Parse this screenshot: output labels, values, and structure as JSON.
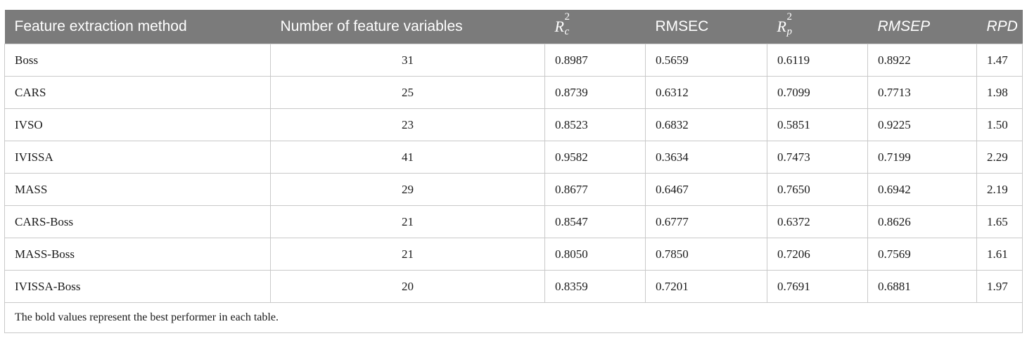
{
  "table": {
    "headers": {
      "method": "Feature extraction method",
      "num_vars": "Number of feature variables",
      "rc2_base": "R",
      "rc2_sup": "2",
      "rc2_sub": "c",
      "rmsec": "RMSEC",
      "rp2_base": "R",
      "rp2_sup": "2",
      "rp2_sub": "p",
      "rmsep": "RMSEP",
      "rpd": "RPD"
    },
    "rows": [
      {
        "method": "Boss",
        "num_vars": "31",
        "rc2": "0.8987",
        "rmsec": "0.5659",
        "rp2": "0.6119",
        "rmsep": "0.8922",
        "rpd": "1.47"
      },
      {
        "method": "CARS",
        "num_vars": "25",
        "rc2": "0.8739",
        "rmsec": "0.6312",
        "rp2": "0.7099",
        "rmsep": "0.7713",
        "rpd": "1.98"
      },
      {
        "method": "IVSO",
        "num_vars": "23",
        "rc2": "0.8523",
        "rmsec": "0.6832",
        "rp2": "0.5851",
        "rmsep": "0.9225",
        "rpd": "1.50"
      },
      {
        "method": "IVISSA",
        "num_vars": "41",
        "rc2": "0.9582",
        "rmsec": "0.3634",
        "rp2": "0.7473",
        "rmsep": "0.7199",
        "rpd": "2.29"
      },
      {
        "method": "MASS",
        "num_vars": "29",
        "rc2": "0.8677",
        "rmsec": "0.6467",
        "rp2": "0.7650",
        "rmsep": "0.6942",
        "rpd": "2.19"
      },
      {
        "method": "CARS-Boss",
        "num_vars": "21",
        "rc2": "0.8547",
        "rmsec": "0.6777",
        "rp2": "0.6372",
        "rmsep": "0.8626",
        "rpd": "1.65"
      },
      {
        "method": "MASS-Boss",
        "num_vars": "21",
        "rc2": "0.8050",
        "rmsec": "0.7850",
        "rp2": "0.7206",
        "rmsep": "0.7569",
        "rpd": "1.61"
      },
      {
        "method": "IVISSA-Boss",
        "num_vars": "20",
        "rc2": "0.8359",
        "rmsec": "0.7201",
        "rp2": "0.7691",
        "rmsep": "0.6881",
        "rpd": "1.97"
      }
    ],
    "footnote": "The bold values represent the best performer in each table."
  },
  "colors": {
    "header_bg": "#7b7b7b",
    "header_text": "#ffffff",
    "border": "#c9c9c9"
  }
}
